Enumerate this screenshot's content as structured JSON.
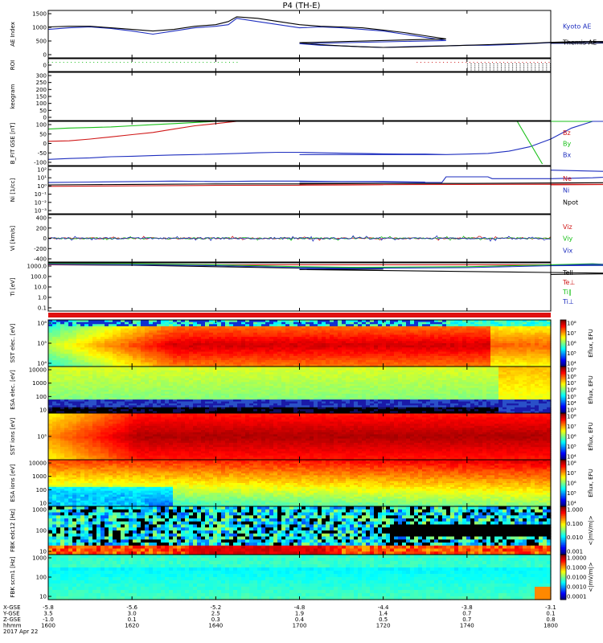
{
  "title": "P4 (TH-E)",
  "colors": {
    "blue": "#1f2fbf",
    "black": "#000000",
    "red": "#d01818",
    "green": "#18c018",
    "redband": "#e01010"
  },
  "chart_data": [
    {
      "type": "line",
      "panel": "ae",
      "ylabel": "AE Index",
      "ylim": [
        0,
        1500
      ],
      "yticks": [
        "1500",
        "1000",
        "500",
        "0"
      ],
      "series": [
        {
          "name": "Kyoto AE",
          "color": "#1f2fbf",
          "x": [
            1600,
            1605,
            1610,
            1615,
            1620,
            1625,
            1630,
            1635,
            1640,
            1643,
            1645,
            1650,
            1655,
            1660,
            1665,
            1670,
            1675,
            1680,
            1685,
            1690,
            1695,
            1700,
            1705,
            1710,
            1715,
            1720,
            1725,
            1730,
            1735,
            1740,
            1745,
            1750,
            1755,
            1760,
            1765,
            1770,
            1775,
            1780,
            1785,
            1790,
            1795,
            1800
          ],
          "values": [
            900,
            950,
            980,
            930,
            850,
            750,
            850,
            950,
            1000,
            1050,
            1250,
            1150,
            1050,
            950,
            980,
            950,
            900,
            850,
            750,
            650,
            550,
            450,
            400,
            380,
            350,
            330,
            350,
            370,
            380,
            400,
            400,
            420,
            450,
            480,
            500,
            520,
            500,
            500,
            520,
            510,
            480,
            460
          ]
        },
        {
          "name": "Themis AE",
          "color": "#000000",
          "x": [
            1600,
            1605,
            1610,
            1615,
            1620,
            1625,
            1630,
            1635,
            1640,
            1643,
            1645,
            1650,
            1655,
            1660,
            1665,
            1670,
            1675,
            1680,
            1685,
            1690,
            1695,
            1700,
            1705,
            1710,
            1715,
            1720,
            1725,
            1730,
            1735,
            1740,
            1745,
            1750,
            1755,
            1760,
            1765,
            1770,
            1775,
            1780,
            1785,
            1790,
            1795,
            1800
          ],
          "values": [
            980,
            1000,
            1000,
            950,
            900,
            850,
            900,
            1000,
            1050,
            1150,
            1300,
            1250,
            1150,
            1050,
            1000,
            980,
            950,
            880,
            800,
            700,
            600,
            480,
            420,
            380,
            350,
            330,
            340,
            360,
            380,
            400,
            420,
            440,
            460,
            490,
            510,
            520,
            510,
            520,
            540,
            530,
            500,
            470
          ]
        }
      ]
    },
    {
      "type": "scatter",
      "panel": "roi",
      "ylabel": "ROI",
      "ylim": [
        0,
        1
      ],
      "yticks": [
        "0"
      ],
      "series": [
        {
          "name": "",
          "color": "#18c018",
          "x_start": 1600,
          "x_end": 1645,
          "rows": 1
        },
        {
          "name": "",
          "color": "#d01818",
          "x_start": 1728,
          "x_end": 1800,
          "rows": 1
        },
        {
          "name": "",
          "color": "#000000",
          "x_start": 1740,
          "x_end": 1800,
          "rows": 4
        }
      ]
    },
    {
      "type": "line",
      "panel": "keogram",
      "ylabel": "keogram",
      "ylim": [
        0,
        300
      ],
      "yticks": [
        "300",
        "250",
        "200",
        "150",
        "100",
        "50",
        "0"
      ],
      "series": []
    },
    {
      "type": "line",
      "panel": "bfield",
      "ylabel": "B_FIT GSE [nT]",
      "ylim": [
        -100,
        100
      ],
      "yticks": [
        "100",
        "50",
        "0",
        "-50",
        "-100"
      ],
      "series": [
        {
          "name": "Bz",
          "color": "#d01818",
          "x": [
            1600,
            1605,
            1610,
            1615,
            1620,
            1625,
            1630,
            1635,
            1640,
            1645,
            1650,
            1655
          ],
          "values": [
            10,
            12,
            20,
            30,
            40,
            50,
            65,
            80,
            90,
            100,
            100,
            100
          ]
        },
        {
          "name": "By",
          "color": "#18c018",
          "x": [
            1600,
            1605,
            1610,
            1615,
            1620,
            1625,
            1630,
            1635,
            1640,
            1645,
            1650,
            1700,
            1750,
            1760,
            1770,
            1775,
            1780,
            1785
          ],
          "values": [
            65,
            70,
            72,
            75,
            80,
            85,
            90,
            95,
            100,
            100,
            100,
            100,
            100,
            100,
            100,
            100,
            100,
            100
          ]
        },
        {
          "name": "Bx",
          "color": "#1f2fbf",
          "x": [
            1600,
            1605,
            1610,
            1615,
            1620,
            1625,
            1630,
            1635,
            1640,
            1645,
            1650,
            1655,
            1660,
            1665,
            1670,
            1675,
            1680,
            1685,
            1690,
            1695,
            1700,
            1705,
            1710,
            1715,
            1720,
            1725,
            1730,
            1735,
            1740,
            1745,
            1750,
            1755,
            1760,
            1765,
            1770,
            1775
          ],
          "values": [
            -72,
            -68,
            -65,
            -60,
            -58,
            -55,
            -52,
            -50,
            -48,
            -45,
            -42,
            -40,
            -40,
            -42,
            -44,
            -45,
            -47,
            -48,
            -48,
            -50,
            -50,
            -50,
            -50,
            -50,
            -50,
            -50,
            -50,
            -50,
            -48,
            -45,
            -35,
            -15,
            20,
            70,
            100,
            100
          ]
        }
      ]
    },
    {
      "type": "line",
      "panel": "density",
      "ylabel": "Ni [1/cc]",
      "ylim_log": [
        -3,
        2
      ],
      "yticks": [
        "10²",
        "10¹",
        "10⁰",
        "10⁻¹",
        "10⁻²",
        "10⁻³"
      ],
      "series": [
        {
          "name": "Ne",
          "color": "#d01818",
          "x": [
            1600,
            1620,
            1640,
            1660,
            1680,
            1700,
            1720,
            1740,
            1760,
            1780,
            1800
          ],
          "values": [
            -0.1,
            -0.05,
            0.0,
            0.02,
            0.05,
            0.05,
            0.08,
            0.1,
            0.12,
            0.1,
            0.05
          ]
        },
        {
          "name": "Ni",
          "color": "#1f2fbf",
          "x": [
            1600,
            1610,
            1620,
            1630,
            1640,
            1650,
            1660,
            1670,
            1680,
            1690,
            1700,
            1710,
            1720,
            1730,
            1734,
            1735,
            1745,
            1746,
            1760,
            1770,
            1780,
            1790,
            1800
          ],
          "values": [
            0.3,
            0.35,
            0.4,
            0.45,
            0.4,
            0.45,
            0.45,
            0.4,
            0.4,
            0.35,
            0.4,
            0.4,
            0.35,
            0.3,
            0.3,
            0.9,
            0.9,
            0.7,
            0.7,
            0.8,
            1.0,
            1.3,
            1.6
          ]
        },
        {
          "name": "Npot",
          "color": "#000000",
          "x": [
            1600,
            1620,
            1640,
            1660,
            1680,
            1700,
            1720,
            1740,
            1760,
            1780,
            1800
          ],
          "values": [
            0.05,
            0.1,
            0.15,
            0.15,
            0.2,
            0.2,
            0.2,
            0.2,
            0.25,
            0.3,
            0.25
          ]
        }
      ]
    },
    {
      "type": "line",
      "panel": "velocity",
      "ylabel": "Vi [km/s]",
      "ylim": [
        -500,
        500
      ],
      "yticks": [
        "400",
        "200",
        "0",
        "-200",
        "-400"
      ],
      "series": [
        {
          "name": "Viz",
          "color": "#d01818",
          "mean": 0,
          "noise": 15
        },
        {
          "name": "Viy",
          "color": "#18c018",
          "mean": 0,
          "noise": 15
        },
        {
          "name": "Vix",
          "color": "#1f2fbf",
          "mean": 0,
          "noise": 20
        }
      ]
    },
    {
      "type": "line",
      "panel": "temperature",
      "ylabel": "Ti [eV]",
      "ylim_log": [
        -1.5,
        3.5
      ],
      "yticks": [
        "1000.0",
        "100.0",
        "10.0",
        "1.0",
        "0.1"
      ],
      "series": [
        {
          "name": "Tell",
          "color": "#000000",
          "x": [
            1600,
            1620,
            1640,
            1660,
            1680,
            1700,
            1720,
            1740,
            1760,
            1780,
            1800
          ],
          "values": [
            3.3,
            3.25,
            3.1,
            2.95,
            2.85,
            2.8,
            2.7,
            2.6,
            2.5,
            2.4,
            2.3
          ]
        },
        {
          "name": "Te⊥",
          "color": "#d01818",
          "x": [
            1600,
            1800
          ],
          "values": [
            3.3,
            3.3
          ]
        },
        {
          "name": "Ti∥",
          "color": "#18c018",
          "x": [
            1600,
            1620,
            1640,
            1660,
            1680,
            1700,
            1720,
            1740,
            1760,
            1770,
            1780,
            1800
          ],
          "values": [
            3.4,
            3.4,
            3.3,
            3.1,
            3.0,
            3.0,
            3.05,
            3.1,
            3.3,
            3.4,
            3.2,
            3.3
          ]
        },
        {
          "name": "Ti⊥",
          "color": "#1f2fbf",
          "x": [
            1600,
            1620,
            1640,
            1660,
            1680,
            1700,
            1720,
            1740,
            1760,
            1770,
            1780,
            1800
          ],
          "values": [
            3.35,
            3.3,
            3.2,
            3.0,
            2.9,
            2.9,
            2.95,
            3.0,
            3.2,
            3.35,
            3.25,
            3.2
          ]
        }
      ]
    },
    {
      "type": "heatmap",
      "panel": "sst_e",
      "ylabel": "SST elec. [eV]",
      "yticks": [
        "10⁶",
        "10⁵",
        "10⁴"
      ],
      "colorbar_label": "Eflux, EFU",
      "colorbar_ticks": [
        "10⁸",
        "10⁷",
        "10⁶",
        "10⁵",
        "10⁴"
      ]
    },
    {
      "type": "heatmap",
      "panel": "esa_e",
      "ylabel": "ESA elec. [eV]",
      "yticks": [
        "10000",
        "1000",
        "100",
        "10"
      ],
      "colorbar_label": "Eflux, EFU",
      "colorbar_ticks": [
        "10⁹",
        "10⁸",
        "10⁷",
        "10⁶",
        "10⁵",
        "10⁴",
        "10³"
      ]
    },
    {
      "type": "heatmap",
      "panel": "sst_i",
      "ylabel": "SST ions [eV]",
      "yticks": [
        "10⁵"
      ],
      "colorbar_label": "Eflux, EFU",
      "colorbar_ticks": [
        "10⁸",
        "10⁷",
        "10⁶",
        "10⁵",
        "10⁴"
      ]
    },
    {
      "type": "heatmap",
      "panel": "esa_i",
      "ylabel": "ESA ions [eV]",
      "yticks": [
        "10000",
        "1000",
        "100",
        "10"
      ],
      "colorbar_label": "Eflux, EFU",
      "colorbar_ticks": [
        "10⁸",
        "10⁷",
        "10⁶",
        "10⁵",
        "10⁴"
      ]
    },
    {
      "type": "heatmap",
      "panel": "fbk_e",
      "ylabel": "FBK edc12 [Hz]",
      "yticks": [
        "1000",
        "100",
        "10"
      ],
      "colorbar_label": "<|mV/m|>",
      "colorbar_ticks": [
        "1.000",
        "0.100",
        "0.010",
        "0.001"
      ]
    },
    {
      "type": "heatmap",
      "panel": "fbk_b",
      "ylabel": "FBK scm1 [Hz]",
      "yticks": [
        "1000",
        "100",
        "10"
      ],
      "colorbar_label": "<|mV/m|>",
      "colorbar_ticks": [
        "1.0000",
        "0.1000",
        "0.0100",
        "0.0010",
        "0.0001"
      ]
    }
  ],
  "xaxis": {
    "row_labels": [
      "X-GSE",
      "Y-GSE",
      "Z-GSE",
      "hhmm",
      "2017 Apr 22"
    ],
    "columns": [
      {
        "x": 1600,
        "vals": [
          "-5.8",
          "3.5",
          "-1.0",
          "1600"
        ]
      },
      {
        "x": 1620,
        "vals": [
          "-5.6",
          "3.0",
          "0.1",
          "1620"
        ]
      },
      {
        "x": 1640,
        "vals": [
          "-5.2",
          "2.5",
          "0.3",
          "1640"
        ]
      },
      {
        "x": 1700,
        "vals": [
          "-4.8",
          "1.9",
          "0.4",
          "1700"
        ]
      },
      {
        "x": 1720,
        "vals": [
          "-4.4",
          "1.4",
          "0.5",
          "1720"
        ]
      },
      {
        "x": 1740,
        "vals": [
          "-3.8",
          "0.7",
          "0.7",
          "1740"
        ]
      },
      {
        "x": 1800,
        "vals": [
          "-3.1",
          "0.1",
          "0.8",
          "1800"
        ]
      }
    ]
  }
}
